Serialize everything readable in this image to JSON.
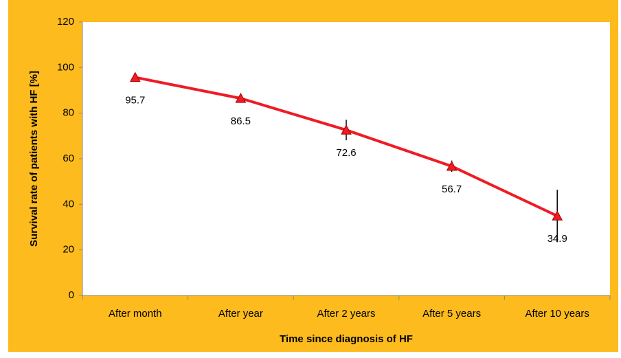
{
  "chart_data": {
    "type": "line",
    "x_label": "Time since diagnosis of HF",
    "y_label": "Survival rate of patients with HF [%]",
    "categories": [
      "After month",
      "After year",
      "After 2 years",
      "After 5 years",
      "After 10 years"
    ],
    "series": [
      {
        "name": "Survival rate",
        "color": "#ee1c25",
        "values": [
          95.7,
          86.5,
          72.6,
          56.7,
          34.9
        ],
        "errors": [
          0.5,
          0.5,
          4.5,
          2.5,
          11.5
        ]
      }
    ],
    "ylim": [
      0,
      120
    ],
    "yticks": [
      0,
      20,
      40,
      60,
      80,
      100,
      120
    ],
    "background": "#fdbb1d",
    "plot_background": "#ffffff"
  }
}
